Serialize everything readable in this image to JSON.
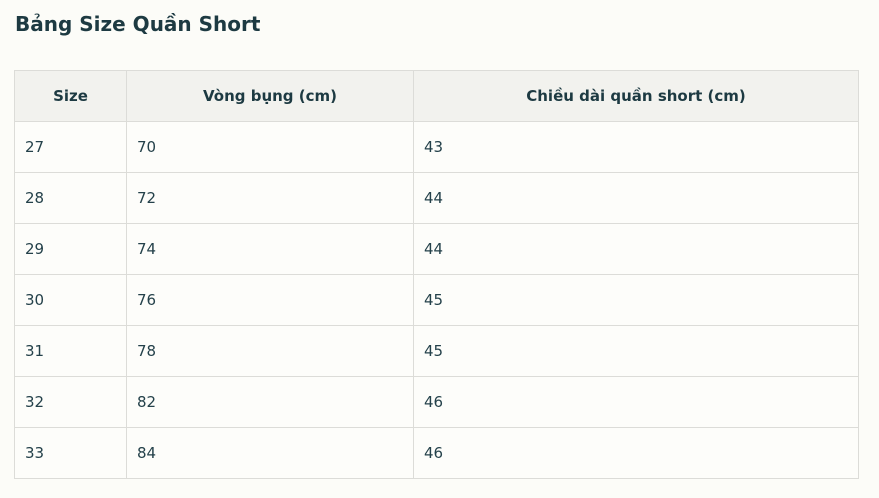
{
  "page": {
    "title": "Bảng Size Quần Short"
  },
  "table": {
    "headers": [
      "Size",
      "Vòng bụng (cm)",
      "Chiều dài quần short (cm)"
    ],
    "rows": [
      [
        "27",
        "70",
        "43"
      ],
      [
        "28",
        "72",
        "44"
      ],
      [
        "29",
        "74",
        "44"
      ],
      [
        "30",
        "76",
        "45"
      ],
      [
        "31",
        "78",
        "45"
      ],
      [
        "32",
        "82",
        "46"
      ],
      [
        "33",
        "84",
        "46"
      ]
    ]
  }
}
